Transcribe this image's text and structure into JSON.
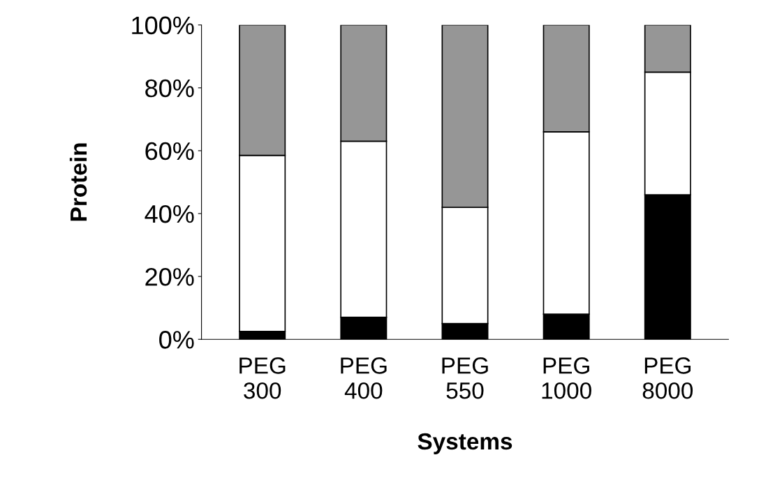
{
  "chart_data": {
    "type": "bar",
    "stacked": true,
    "xlabel": "Systems",
    "ylabel": "Protein",
    "categories": [
      "PEG\n300",
      "PEG\n400",
      "PEG\n550",
      "PEG\n1000",
      "PEG\n8000"
    ],
    "series": [
      {
        "color": "#000000",
        "values": [
          2.5,
          7,
          5,
          8,
          46
        ]
      },
      {
        "color": "#ffffff",
        "values": [
          56,
          56,
          37,
          58,
          39
        ]
      },
      {
        "color": "#969696",
        "values": [
          41.5,
          37,
          58,
          34,
          15
        ]
      }
    ],
    "ylim": [
      0,
      100
    ],
    "yticks": [
      {
        "value": 0,
        "label": "0%"
      },
      {
        "value": 20,
        "label": "20%"
      },
      {
        "value": 40,
        "label": "40%"
      },
      {
        "value": 60,
        "label": "60%"
      },
      {
        "value": 80,
        "label": "80%"
      },
      {
        "value": 100,
        "label": "100%"
      }
    ],
    "grid": false,
    "legend": false
  }
}
